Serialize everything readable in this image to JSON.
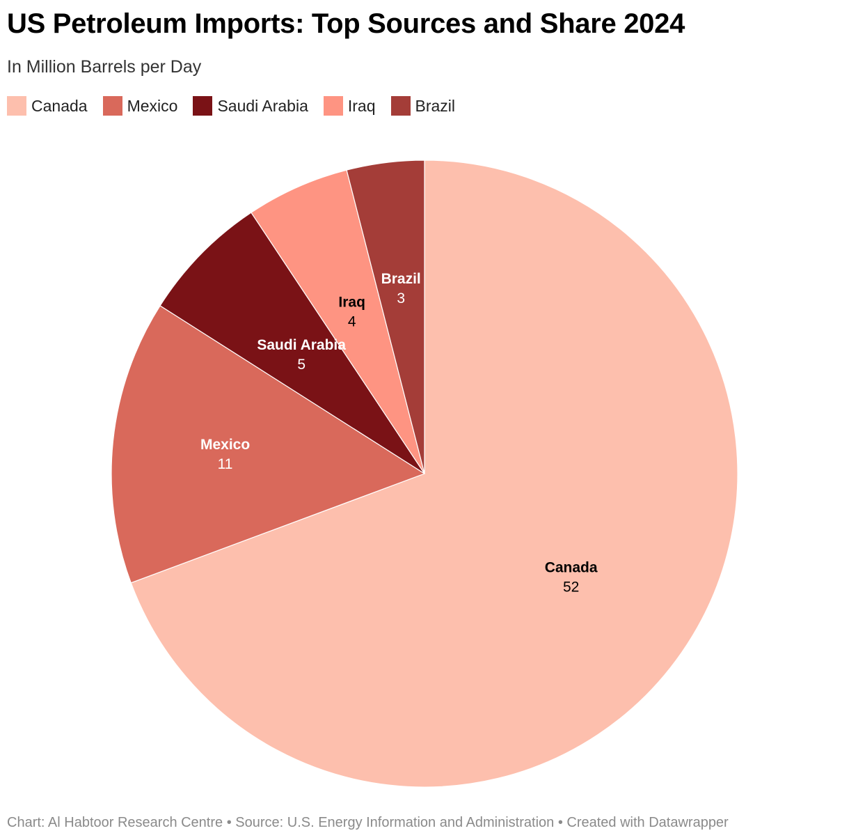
{
  "title": "US Petroleum Imports: Top Sources and Share 2024",
  "subtitle": "In Million Barrels per Day",
  "footer": "Chart: Al Habtoor Research Centre • Source: U.S. Energy Information and Administration • Created with Datawrapper",
  "chart_data": {
    "type": "pie",
    "title": "US Petroleum Imports: Top Sources and Share 2024",
    "subtitle": "In Million Barrels per Day",
    "legend_position": "top-left",
    "categories": [
      "Canada",
      "Mexico",
      "Saudi Arabia",
      "Iraq",
      "Brazil"
    ],
    "values": [
      52,
      11,
      5,
      4,
      3
    ],
    "colors": [
      "#fdbfad",
      "#d9695b",
      "#7a1216",
      "#fe9482",
      "#a43d38"
    ],
    "label_colors": [
      "#000000",
      "#ffffff",
      "#ffffff",
      "#000000",
      "#ffffff"
    ]
  }
}
